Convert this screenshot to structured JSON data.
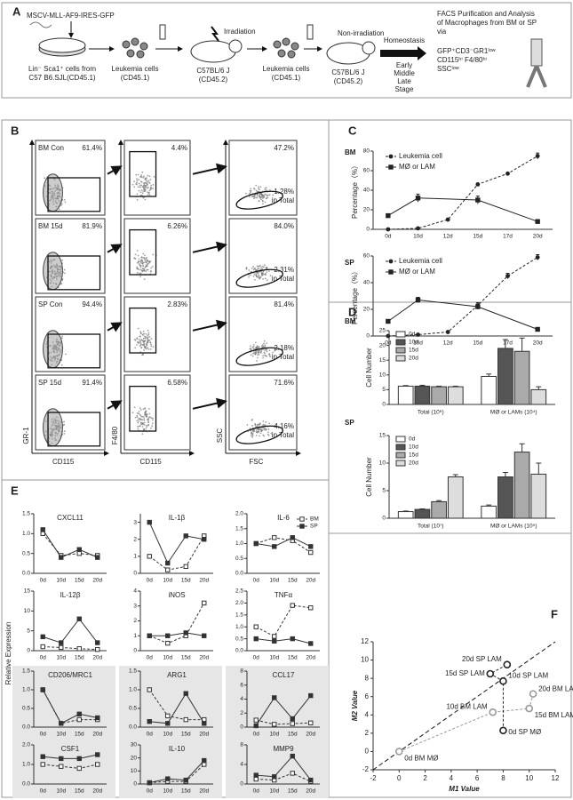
{
  "panel_letters": [
    "A",
    "B",
    "C",
    "D",
    "E",
    "F"
  ],
  "panel_a": {
    "vector": "MSCV-MLL-AF9-IRES-GFP",
    "donor": [
      "Lin⁻ Sca1⁺ cells from",
      "C57 B6.SJL(CD45.1)"
    ],
    "leukemia_1": [
      "Leukemia cells",
      "(CD45.1)"
    ],
    "irradiation": "Irradiation",
    "recipient_1": [
      "C57BL/6 J",
      "(CD45.2)"
    ],
    "leukemia_2": [
      "Leukemia cells",
      "(CD45.1)"
    ],
    "non_irradiation": "Non-irradiation",
    "recipient_2": [
      "C57BL/6 J",
      "(CD45.2)"
    ],
    "homeostasis": "Homeostasis",
    "stages": [
      "Early",
      "Middle",
      "Late",
      "Stage"
    ],
    "facs": [
      "FACS Purification and Analysis",
      "of Macrophages  from BM or SP",
      "via"
    ],
    "markers": [
      "GFP⁺CD3⁻GR1ˡᵒʷ",
      "CD115ʰⁱ F4/80ʰⁱ",
      "SSCˡᵒʷ"
    ]
  },
  "panel_b": {
    "rows": [
      {
        "label": "BM Con",
        "gates": [
          "61.4%",
          "4.4%",
          "47.2%"
        ],
        "total": "1.28%"
      },
      {
        "label": "BM 15d",
        "gates": [
          "81.9%",
          "6.26%",
          "84.0%"
        ],
        "total": "2.31%"
      },
      {
        "label": "SP Con",
        "gates": [
          "94.4%",
          "2.83%",
          "81.4%"
        ],
        "total": "2.18%"
      },
      {
        "label": "SP 15d",
        "gates": [
          "91.4%",
          "6.58%",
          "71.6%"
        ],
        "total": "4.16%"
      }
    ],
    "total_suffix": "in Total",
    "y_axes": [
      "GR-1",
      "F4/80",
      "SSC"
    ],
    "x_axes": [
      "CD115",
      "CD115",
      "FSC"
    ]
  },
  "panel_e": {
    "ylabel": "Relative Expression"
  },
  "chart_data": [
    {
      "type": "line",
      "title": "BM",
      "ylabel": "Percentage（%）",
      "categories": [
        "0d",
        "10d",
        "12d",
        "15d",
        "17d",
        "20d"
      ],
      "series": [
        {
          "name": "Leukemia cell",
          "color": "#222222",
          "marker": "circle",
          "dash": true,
          "values": [
            0,
            1,
            10,
            46,
            57,
            75
          ],
          "errors": [
            null,
            null,
            null,
            null,
            null,
            3
          ]
        },
        {
          "name": "MØ or LAM",
          "color": "#222222",
          "marker": "square",
          "dash": false,
          "x": [
            "0d",
            "10d",
            "15d",
            "20d"
          ],
          "values": [
            14,
            32,
            30,
            8
          ],
          "errors": [
            1,
            4,
            4,
            1
          ]
        }
      ],
      "ylim": [
        0,
        80
      ],
      "yticks": [
        0,
        20,
        40,
        60,
        80
      ],
      "legend": "upper left"
    },
    {
      "type": "line",
      "title": "SP",
      "ylabel": "Percentage（%）",
      "categories": [
        "0d",
        "10d",
        "12d",
        "15d",
        "17d",
        "20d"
      ],
      "series": [
        {
          "name": "Leukemia cell",
          "color": "#222222",
          "marker": "circle",
          "dash": true,
          "values": [
            0,
            1,
            3,
            23,
            45,
            59
          ],
          "errors": [
            null,
            null,
            null,
            2,
            2,
            2
          ]
        },
        {
          "name": "MØ or LAM",
          "color": "#222222",
          "marker": "square",
          "dash": false,
          "x": [
            "0d",
            "10d",
            "15d",
            "20d"
          ],
          "values": [
            11,
            27,
            22,
            5
          ],
          "errors": [
            1,
            2,
            2,
            1
          ]
        }
      ],
      "ylim": [
        0,
        60
      ],
      "yticks": [
        0,
        20,
        40,
        60
      ],
      "legend": "upper left"
    },
    {
      "type": "bar",
      "title": "BM",
      "ylabel": "Cell Number",
      "categories": [
        "Total (10⁶)",
        "MØ or LAMs (10⁴)"
      ],
      "series": [
        {
          "name": "0d",
          "color": "#ffffff",
          "values": [
            6.2,
            9.5
          ],
          "errors": [
            0.2,
            0.8
          ]
        },
        {
          "name": "10d",
          "color": "#555555",
          "values": [
            6.2,
            19
          ],
          "errors": [
            0.3,
            3
          ]
        },
        {
          "name": "15d",
          "color": "#aaaaaa",
          "values": [
            6,
            18
          ],
          "errors": [
            0.2,
            4.5
          ]
        },
        {
          "name": "20d",
          "color": "#dddddd",
          "values": [
            6,
            5
          ],
          "errors": [
            0.2,
            1
          ]
        }
      ],
      "ylim": [
        0,
        25
      ],
      "yticks": [
        0,
        5,
        10,
        15,
        20,
        25
      ],
      "legend": "upper left"
    },
    {
      "type": "bar",
      "title": "SP",
      "ylabel": "Cell Number",
      "categories": [
        "Total (10⁷)",
        "MØ or LAMs (10⁵)"
      ],
      "series": [
        {
          "name": "0d",
          "color": "#ffffff",
          "values": [
            1.2,
            2.2
          ],
          "errors": [
            0.1,
            0.2
          ]
        },
        {
          "name": "10d",
          "color": "#555555",
          "values": [
            1.6,
            7.5
          ],
          "errors": [
            0.1,
            0.8
          ]
        },
        {
          "name": "15d",
          "color": "#aaaaaa",
          "values": [
            3,
            12
          ],
          "errors": [
            0.2,
            1.5
          ]
        },
        {
          "name": "20d",
          "color": "#dddddd",
          "values": [
            7.5,
            8
          ],
          "errors": [
            0.4,
            2
          ]
        }
      ],
      "ylim": [
        0,
        15
      ],
      "yticks": [
        0,
        5,
        10,
        15
      ],
      "legend": "upper left"
    },
    {
      "type": "line",
      "title": "CXCL11",
      "categories": [
        "0d",
        "10d",
        "15d",
        "20d"
      ],
      "series": [
        {
          "color": "#333333",
          "marker": "open-square",
          "dash": true,
          "values": [
            1.0,
            0.45,
            0.5,
            0.45
          ]
        },
        {
          "color": "#333333",
          "marker": "square",
          "dash": false,
          "values": [
            1.1,
            0.4,
            0.6,
            0.4
          ]
        }
      ],
      "ylim": [
        0,
        1.5
      ],
      "yticks": [
        {
          "value": 0,
          "label": "0.0"
        },
        {
          "value": 0.5,
          "label": "0.5"
        },
        {
          "value": 1,
          "label": "1.0"
        },
        {
          "value": 1.5,
          "label": "1.5"
        }
      ]
    },
    {
      "type": "line",
      "title": "IL-1β",
      "categories": [
        "0d",
        "10d",
        "15d",
        "20d"
      ],
      "series": [
        {
          "color": "#333333",
          "marker": "open-square",
          "dash": true,
          "values": [
            1.0,
            0.2,
            0.4,
            2.2
          ]
        },
        {
          "color": "#333333",
          "marker": "square",
          "dash": false,
          "values": [
            3.0,
            0.6,
            2.2,
            2.0
          ]
        }
      ],
      "ylim": [
        0,
        3.5
      ],
      "yticks": [
        0,
        1,
        2,
        3
      ]
    },
    {
      "type": "line",
      "title": "IL-6",
      "categories": [
        "0d",
        "10d",
        "15d",
        "20d"
      ],
      "series": [
        {
          "name": "BM",
          "color": "#333333",
          "marker": "open-square",
          "dash": true,
          "values": [
            1.0,
            1.2,
            1.1,
            0.7
          ]
        },
        {
          "name": "SP",
          "color": "#333333",
          "marker": "square",
          "dash": false,
          "values": [
            1.0,
            0.9,
            1.2,
            0.9
          ]
        }
      ],
      "ylim": [
        0,
        2
      ],
      "yticks": [
        {
          "value": 0,
          "label": "0.0"
        },
        {
          "value": 0.5,
          "label": "0.5"
        },
        {
          "value": 1,
          "label": "1.0"
        },
        {
          "value": 1.5,
          "label": "1.5"
        },
        {
          "value": 2,
          "label": "2.0"
        }
      ],
      "legend": "upper right"
    },
    {
      "type": "line",
      "title": "IL-12β",
      "categories": [
        "0d",
        "10d",
        "15d",
        "20d"
      ],
      "series": [
        {
          "color": "#333333",
          "marker": "open-square",
          "dash": true,
          "values": [
            1,
            0.8,
            0.5,
            0.3
          ]
        },
        {
          "color": "#333333",
          "marker": "square",
          "dash": false,
          "values": [
            3.5,
            2,
            8,
            2
          ]
        }
      ],
      "ylim": [
        0,
        15
      ],
      "yticks": [
        0,
        5,
        10,
        15
      ]
    },
    {
      "type": "line",
      "title": "iNOS",
      "categories": [
        "0d",
        "10d",
        "15d",
        "20d"
      ],
      "series": [
        {
          "color": "#333333",
          "marker": "open-square",
          "dash": true,
          "values": [
            1,
            0.5,
            1,
            3.2
          ]
        },
        {
          "color": "#333333",
          "marker": "square",
          "dash": false,
          "values": [
            1,
            1,
            1.2,
            1
          ]
        }
      ],
      "ylim": [
        0,
        4
      ],
      "yticks": [
        0,
        1,
        2,
        3,
        4
      ]
    },
    {
      "type": "line",
      "title": "TNFα",
      "categories": [
        "0d",
        "10d",
        "15d",
        "20d"
      ],
      "series": [
        {
          "color": "#333333",
          "marker": "open-square",
          "dash": true,
          "values": [
            1,
            0.6,
            1.9,
            1.8
          ]
        },
        {
          "color": "#333333",
          "marker": "square",
          "dash": false,
          "values": [
            0.5,
            0.4,
            0.5,
            0.3
          ]
        }
      ],
      "ylim": [
        0,
        2.5
      ],
      "yticks": [
        {
          "value": 0,
          "label": "0.0"
        },
        {
          "value": 0.5,
          "label": "0.5"
        },
        {
          "value": 1,
          "label": "1.0"
        },
        {
          "value": 1.5,
          "label": "1.5"
        },
        {
          "value": 2,
          "label": "2.0"
        },
        {
          "value": 2.5,
          "label": "2.5"
        }
      ]
    },
    {
      "type": "line",
      "title": "CD206/MRC1",
      "background": "#e6e6e6",
      "categories": [
        "0d",
        "10d",
        "15d",
        "20d"
      ],
      "series": [
        {
          "color": "#333333",
          "marker": "open-square",
          "dash": true,
          "values": [
            1,
            0.1,
            0.2,
            0.2
          ]
        },
        {
          "color": "#333333",
          "marker": "square",
          "dash": false,
          "values": [
            1,
            0.1,
            0.35,
            0.25
          ]
        }
      ],
      "ylim": [
        0,
        1.5
      ],
      "yticks": [
        {
          "value": 0,
          "label": "0.0"
        },
        {
          "value": 0.5,
          "label": "0.5"
        },
        {
          "value": 1,
          "label": "1.0"
        },
        {
          "value": 1.5,
          "label": "1.5"
        }
      ]
    },
    {
      "type": "line",
      "title": "ARG1",
      "background": "#e6e6e6",
      "categories": [
        "0d",
        "10d",
        "15d",
        "20d"
      ],
      "series": [
        {
          "color": "#333333",
          "marker": "open-square",
          "dash": true,
          "values": [
            1,
            0.3,
            0.2,
            0.2
          ]
        },
        {
          "color": "#333333",
          "marker": "square",
          "dash": false,
          "values": [
            0.15,
            0.1,
            0.9,
            0.1
          ]
        }
      ],
      "ylim": [
        0,
        1.5
      ],
      "yticks": [
        {
          "value": 0,
          "label": "0.0"
        },
        {
          "value": 0.5,
          "label": "0.5"
        },
        {
          "value": 1,
          "label": "1.0"
        },
        {
          "value": 1.5,
          "label": "1.5"
        }
      ]
    },
    {
      "type": "line",
      "title": "CCL17",
      "background": "#e6e6e6",
      "categories": [
        "0d",
        "10d",
        "15d",
        "20d"
      ],
      "series": [
        {
          "color": "#333333",
          "marker": "open-square",
          "dash": true,
          "values": [
            1,
            0.4,
            0.5,
            0.6
          ]
        },
        {
          "color": "#333333",
          "marker": "square",
          "dash": false,
          "values": [
            0.2,
            4.2,
            1.2,
            4.5
          ]
        }
      ],
      "ylim": [
        0,
        8
      ],
      "yticks": [
        0,
        2,
        4,
        6,
        8
      ]
    },
    {
      "type": "line",
      "title": "CSF1",
      "background": "#e6e6e6",
      "categories": [
        "0d",
        "10d",
        "15d",
        "20d"
      ],
      "series": [
        {
          "color": "#333333",
          "marker": "open-square",
          "dash": true,
          "values": [
            1,
            0.9,
            0.8,
            1.0
          ]
        },
        {
          "color": "#333333",
          "marker": "square",
          "dash": false,
          "values": [
            1.4,
            1.3,
            1.3,
            1.5
          ]
        }
      ],
      "ylim": [
        0,
        2
      ],
      "yticks": [
        {
          "value": 0,
          "label": "0.0"
        },
        {
          "value": 1,
          "label": "1.0"
        },
        {
          "value": 2,
          "label": "2.0"
        }
      ]
    },
    {
      "type": "line",
      "title": "IL-10",
      "background": "#e6e6e6",
      "categories": [
        "0d",
        "10d",
        "15d",
        "20d"
      ],
      "series": [
        {
          "color": "#333333",
          "marker": "open-square",
          "dash": true,
          "values": [
            1,
            2,
            2,
            15
          ]
        },
        {
          "color": "#333333",
          "marker": "square",
          "dash": false,
          "values": [
            1,
            4,
            3,
            18
          ]
        }
      ],
      "ylim": [
        0,
        30
      ],
      "yticks": [
        0,
        10,
        20,
        30
      ]
    },
    {
      "type": "line",
      "title": "MMP9",
      "background": "#e6e6e6",
      "categories": [
        "0d",
        "10d",
        "15d",
        "20d"
      ],
      "series": [
        {
          "color": "#333333",
          "marker": "open-square",
          "dash": true,
          "values": [
            1,
            0.8,
            2.2,
            0.5
          ]
        },
        {
          "color": "#333333",
          "marker": "square",
          "dash": false,
          "values": [
            1.8,
            1.5,
            5.7,
            0.8
          ]
        }
      ],
      "ylim": [
        0,
        8
      ],
      "yticks": [
        0,
        4,
        8
      ]
    },
    {
      "type": "scatter",
      "xlabel": "M1 Value",
      "ylabel": "M2 Value",
      "diagonal": true,
      "series": [
        {
          "color": "#999999",
          "x": [
            0,
            7.2,
            10,
            10.3
          ],
          "values": [
            0,
            4.3,
            4.7,
            6.3
          ],
          "point_labels": [
            "0d BM MØ",
            "10d BM LAM",
            "15d BM LAM",
            "20d BM LAM"
          ]
        },
        {
          "color": "#222222",
          "x": [
            8,
            8,
            7,
            8.3
          ],
          "values": [
            2.3,
            7.7,
            8.5,
            9.5
          ],
          "point_labels": [
            "0d SP MØ",
            "10d SP LAM",
            "15d SP LAM",
            "20d SP LAM"
          ]
        }
      ],
      "xlim": [
        -2,
        12
      ],
      "ylim": [
        -2,
        12
      ],
      "xticks": [
        -2,
        0,
        2,
        4,
        6,
        8,
        10,
        12
      ],
      "yticks": [
        -2,
        0,
        2,
        4,
        6,
        8,
        10,
        12
      ]
    }
  ]
}
